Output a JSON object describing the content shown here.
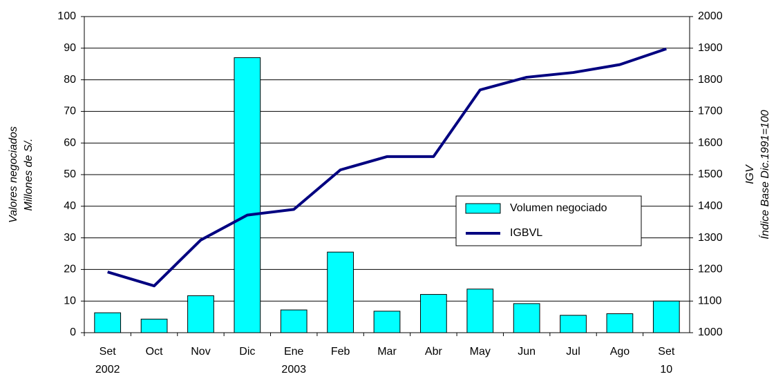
{
  "chart_data": {
    "type": "bar_line",
    "categories": [
      "Set",
      "Oct",
      "Nov",
      "Dic",
      "Ene",
      "Feb",
      "Mar",
      "Abr",
      "May",
      "Jun",
      "Jul",
      "Ago",
      "Set"
    ],
    "category_sublabels": [
      "2002",
      null,
      null,
      null,
      "2003",
      null,
      null,
      null,
      null,
      null,
      null,
      null,
      "10"
    ],
    "series": [
      {
        "name": "Volumen negociado",
        "type": "bar",
        "color": "#00ffff",
        "values": [
          6.3,
          4.3,
          11.7,
          87,
          7.2,
          25.5,
          6.8,
          12.1,
          13.8,
          9.2,
          5.5,
          6,
          10
        ]
      },
      {
        "name": "IGBVL",
        "type": "line",
        "axis": "y2",
        "color": "#000080",
        "values": [
          1192,
          1148,
          1293,
          1372,
          1390,
          1515,
          1557,
          1557,
          1768,
          1808,
          1823,
          1848,
          1898
        ]
      }
    ],
    "y_label": [
      "Valores negociados",
      "Millones de S/."
    ],
    "y2_label": [
      "IGV",
      "Índice Base Dic.1991=100"
    ],
    "ylim": [
      0,
      100
    ],
    "yticks": [
      0,
      10,
      20,
      30,
      40,
      50,
      60,
      70,
      80,
      90,
      100
    ],
    "y2lim": [
      1000,
      2000
    ],
    "y2ticks": [
      1000,
      1100,
      1200,
      1300,
      1400,
      1500,
      1600,
      1700,
      1800,
      1900,
      2000
    ],
    "grid": true
  }
}
